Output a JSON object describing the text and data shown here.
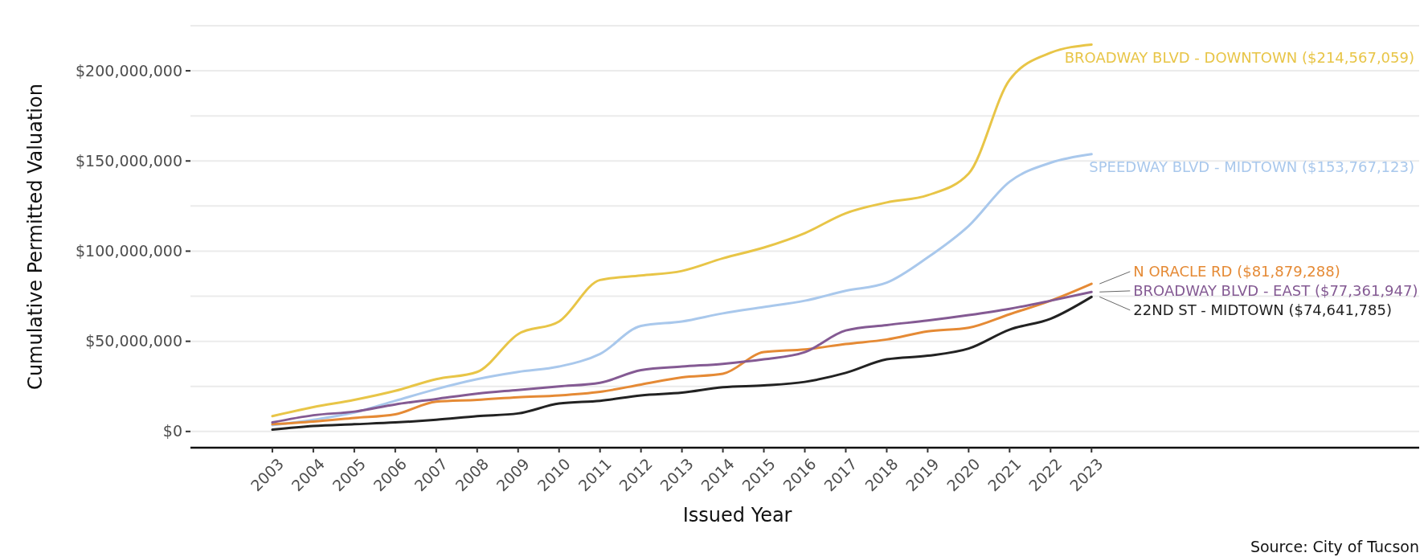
{
  "chart_data": {
    "type": "line",
    "xlabel": "Issued Year",
    "ylabel": "Cumulative Permitted Valuation",
    "x": [
      2003,
      2004,
      2005,
      2006,
      2007,
      2008,
      2009,
      2010,
      2011,
      2012,
      2013,
      2014,
      2015,
      2016,
      2017,
      2018,
      2019,
      2020,
      2021,
      2022,
      2023
    ],
    "xlim": [
      2001,
      2031
    ],
    "xticks": [
      2003,
      2004,
      2005,
      2006,
      2007,
      2008,
      2009,
      2010,
      2011,
      2012,
      2013,
      2014,
      2015,
      2016,
      2017,
      2018,
      2019,
      2020,
      2021,
      2022,
      2023
    ],
    "ylim": [
      -9000000,
      225000000
    ],
    "yticks": [
      {
        "value": 0,
        "label": "$0"
      },
      {
        "value": 25000000,
        "label": null
      },
      {
        "value": 50000000,
        "label": "$50,000,000"
      },
      {
        "value": 75000000,
        "label": null
      },
      {
        "value": 100000000,
        "label": "$100,000,000"
      },
      {
        "value": 125000000,
        "label": null
      },
      {
        "value": 150000000,
        "label": "$150,000,000"
      },
      {
        "value": 175000000,
        "label": null
      },
      {
        "value": 200000000,
        "label": "$200,000,000"
      },
      {
        "value": 225000000,
        "label": null
      }
    ],
    "grid": "y",
    "marker": "none",
    "line_style": "solid",
    "series": [
      {
        "name": "BROADWAY BLVD - DOWNTOWN ($214,567,059)",
        "color": "#e8c547",
        "values": [
          8500000,
          13500000,
          17500000,
          22500000,
          29000000,
          33000000,
          54000000,
          61000000,
          84000000,
          86500000,
          89000000,
          96000000,
          102000000,
          110000000,
          121000000,
          127000000,
          131000000,
          143000000,
          195000000,
          210000000,
          214567059
        ]
      },
      {
        "name": "SPEEDWAY BLVD - MIDTOWN ($153,767,123)",
        "color": "#a9c8ec",
        "values": [
          3500000,
          6500000,
          10500000,
          17000000,
          23500000,
          29000000,
          33000000,
          36000000,
          43000000,
          58500000,
          61000000,
          65500000,
          69000000,
          72500000,
          78000000,
          82500000,
          96500000,
          114000000,
          138500000,
          149000000,
          153767123
        ]
      },
      {
        "name": "N ORACLE RD ($81,879,288)",
        "color": "#e58a35",
        "values": [
          4000000,
          5500000,
          7500000,
          9500000,
          16500000,
          17500000,
          19000000,
          20000000,
          22000000,
          26000000,
          30000000,
          32000000,
          44000000,
          45500000,
          48500000,
          51000000,
          55500000,
          57500000,
          65000000,
          72500000,
          81879288
        ]
      },
      {
        "name": "BROADWAY BLVD - EAST ($77,361,947)",
        "color": "#845a93",
        "values": [
          5000000,
          9000000,
          11000000,
          15000000,
          18000000,
          21000000,
          23000000,
          25000000,
          27000000,
          34000000,
          36000000,
          37500000,
          40000000,
          44000000,
          56000000,
          59000000,
          61500000,
          64500000,
          68000000,
          72500000,
          77361947
        ]
      },
      {
        "name": "22ND ST - MIDTOWN ($74,641,785)",
        "color": "#222222",
        "values": [
          1000000,
          3000000,
          4000000,
          5000000,
          6500000,
          8500000,
          10000000,
          15500000,
          17000000,
          20000000,
          21500000,
          24500000,
          25500000,
          27500000,
          32500000,
          40000000,
          42000000,
          46000000,
          56500000,
          62500000,
          74641785
        ]
      }
    ],
    "annotations": [
      "Source: City of Tucson"
    ]
  }
}
